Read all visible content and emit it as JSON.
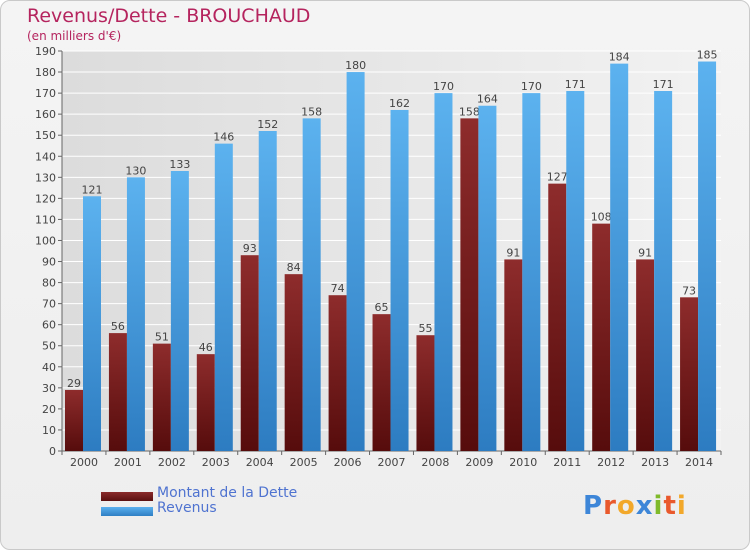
{
  "header": {
    "title": "Revenus/Dette - BROUCHAUD",
    "subtitle": "(en milliers d'€)"
  },
  "legend": {
    "debt_label": "Montant de la Dette",
    "revenue_label": "Revenus"
  },
  "logo": {
    "text": "Proxiti"
  },
  "colors": {
    "debt": "#7a1f1f",
    "revenue": "#3b95dc",
    "axis_text": "#444444",
    "grid": "#ffffff"
  },
  "chart_data": {
    "type": "bar",
    "title": "Revenus/Dette - BROUCHAUD",
    "subtitle": "(en milliers d'€)",
    "xlabel": "",
    "ylabel": "",
    "ylim": [
      0,
      190
    ],
    "ytick_step": 10,
    "grid": true,
    "legend_position": "bottom-left",
    "categories": [
      "2000",
      "2001",
      "2002",
      "2003",
      "2004",
      "2005",
      "2006",
      "2007",
      "2008",
      "2009",
      "2010",
      "2011",
      "2012",
      "2013",
      "2014"
    ],
    "series": [
      {
        "name": "Montant de la Dette",
        "values": [
          29,
          56,
          51,
          46,
          93,
          84,
          74,
          65,
          55,
          158,
          91,
          127,
          108,
          91,
          73
        ]
      },
      {
        "name": "Revenus",
        "values": [
          121,
          130,
          133,
          146,
          152,
          158,
          180,
          162,
          170,
          164,
          170,
          171,
          184,
          171,
          185
        ]
      }
    ]
  }
}
